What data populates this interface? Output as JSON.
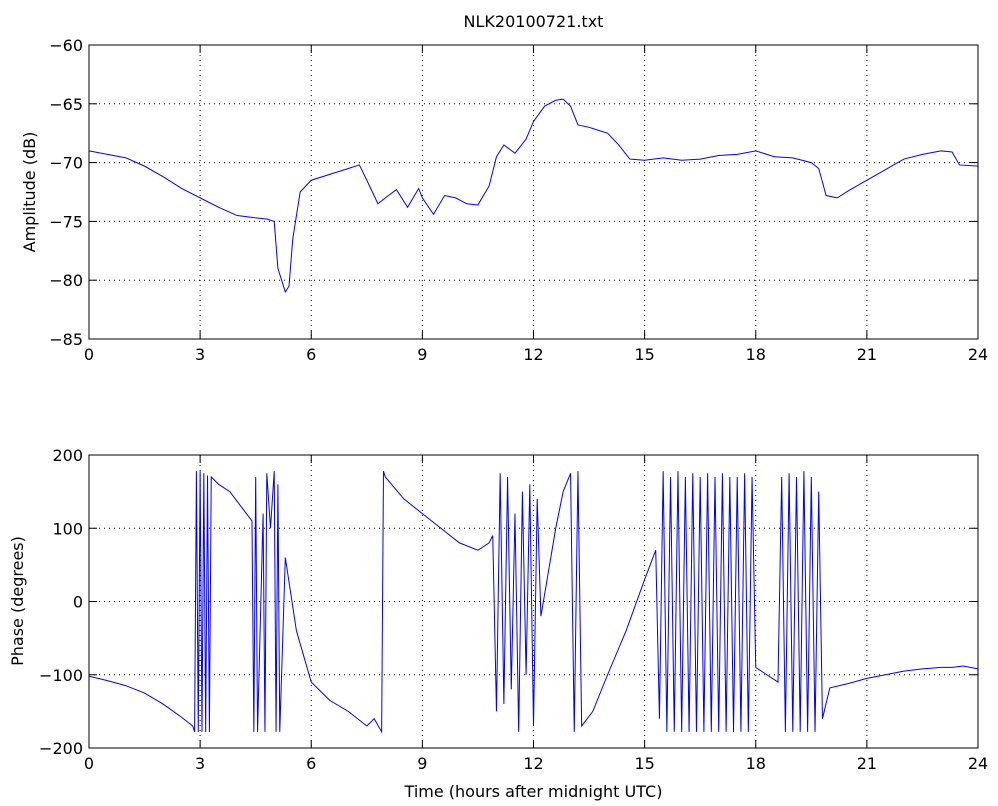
{
  "chart_data": [
    {
      "type": "line",
      "title": "NLK20100721.txt",
      "xlabel": "",
      "ylabel": "Amplitude (dB)",
      "xlim": [
        0,
        24
      ],
      "ylim": [
        -85,
        -60
      ],
      "xticks": [
        "0",
        "3",
        "6",
        "9",
        "12",
        "15",
        "18",
        "21",
        "24"
      ],
      "yticks": [
        "−85",
        "−80",
        "−75",
        "−70",
        "−65",
        "−60"
      ],
      "grid": true,
      "line_color": "#0000ff",
      "series": [
        {
          "x": [
            0,
            0.5,
            1,
            1.5,
            2,
            2.5,
            3,
            3.5,
            4,
            4.5,
            4.8,
            5.0,
            5.1,
            5.2,
            5.3,
            5.4,
            5.5,
            5.7,
            6.0,
            6.5,
            7.0,
            7.3,
            7.5,
            7.8,
            8.0,
            8.3,
            8.6,
            8.9,
            9.0,
            9.3,
            9.6,
            9.9,
            10.2,
            10.5,
            10.8,
            11.0,
            11.2,
            11.5,
            11.8,
            12.0,
            12.3,
            12.6,
            12.8,
            13.0,
            13.2,
            13.5,
            13.8,
            14.0,
            14.3,
            14.6,
            15.0,
            15.5,
            16.0,
            16.5,
            17.0,
            17.5,
            18.0,
            18.5,
            19.0,
            19.5,
            19.7,
            19.9,
            20.2,
            20.5,
            21.0,
            21.5,
            22.0,
            22.5,
            23.0,
            23.3,
            23.5,
            24.0
          ],
          "y": [
            -69.0,
            -69.3,
            -69.6,
            -70.3,
            -71.2,
            -72.2,
            -73.0,
            -73.8,
            -74.5,
            -74.7,
            -74.8,
            -75.0,
            -79.0,
            -80.0,
            -81.0,
            -80.5,
            -76.5,
            -72.5,
            -71.5,
            -71.0,
            -70.5,
            -70.2,
            -71.5,
            -73.5,
            -73.0,
            -72.3,
            -73.8,
            -72.2,
            -73.0,
            -74.4,
            -72.8,
            -73.0,
            -73.5,
            -73.6,
            -72.0,
            -69.5,
            -68.5,
            -69.2,
            -68.0,
            -66.5,
            -65.2,
            -64.7,
            -64.6,
            -65.2,
            -66.8,
            -67.0,
            -67.3,
            -67.5,
            -68.5,
            -69.7,
            -69.8,
            -69.6,
            -69.8,
            -69.7,
            -69.4,
            -69.3,
            -69.0,
            -69.5,
            -69.6,
            -70.0,
            -70.5,
            -72.8,
            -73.0,
            -72.4,
            -71.5,
            -70.6,
            -69.7,
            -69.3,
            -69.0,
            -69.1,
            -70.2,
            -70.3
          ]
        }
      ]
    },
    {
      "type": "line",
      "title": "",
      "xlabel": "Time (hours after midnight UTC)",
      "ylabel": "Phase (degrees)",
      "xlim": [
        0,
        24
      ],
      "ylim": [
        -200,
        200
      ],
      "xticks": [
        "0",
        "3",
        "6",
        "9",
        "12",
        "15",
        "18",
        "21",
        "24"
      ],
      "yticks": [
        "−200",
        "−100",
        "0",
        "100",
        "200"
      ],
      "grid": true,
      "line_color": "#0000ff",
      "series": [
        {
          "x": [
            0,
            0.5,
            1.0,
            1.5,
            2.0,
            2.5,
            2.8,
            2.85,
            2.9,
            2.95,
            3.0,
            3.05,
            3.1,
            3.15,
            3.2,
            3.25,
            3.3,
            3.4,
            3.5,
            3.8,
            4.1,
            4.4,
            4.45,
            4.5,
            4.55,
            4.7,
            4.75,
            4.8,
            4.9,
            5.0,
            5.05,
            5.1,
            5.15,
            5.3,
            5.6,
            6.0,
            6.5,
            7.0,
            7.5,
            7.7,
            7.9,
            7.95,
            8.0,
            8.5,
            9.0,
            9.5,
            10.0,
            10.5,
            10.8,
            10.9,
            11.0,
            11.1,
            11.2,
            11.3,
            11.4,
            11.5,
            11.6,
            11.7,
            11.8,
            11.9,
            12.0,
            12.1,
            12.2,
            12.4,
            12.6,
            12.8,
            13.0,
            13.1,
            13.2,
            13.3,
            13.6,
            14.0,
            14.5,
            15.0,
            15.3,
            15.4,
            15.5,
            15.6,
            15.7,
            15.8,
            15.9,
            16.0,
            16.1,
            16.2,
            16.3,
            16.4,
            16.5,
            16.6,
            16.7,
            16.8,
            16.9,
            17.0,
            17.1,
            17.2,
            17.3,
            17.4,
            17.5,
            17.6,
            17.7,
            17.8,
            17.9,
            18.0,
            18.3,
            18.6,
            18.7,
            18.8,
            18.9,
            19.0,
            19.1,
            19.2,
            19.3,
            19.4,
            19.5,
            19.6,
            19.7,
            19.8,
            20.0,
            20.5,
            21.0,
            21.5,
            22.0,
            22.5,
            23.0,
            23.3,
            23.6,
            24.0
          ],
          "y": [
            -102,
            -108,
            -115,
            -125,
            -140,
            -158,
            -170,
            -178,
            178,
            -178,
            178,
            -178,
            175,
            -178,
            172,
            -178,
            170,
            165,
            160,
            150,
            130,
            110,
            -178,
            170,
            -178,
            120,
            -178,
            175,
            100,
            178,
            -178,
            160,
            -178,
            60,
            -40,
            -110,
            -135,
            -150,
            -170,
            -160,
            -178,
            178,
            170,
            140,
            120,
            100,
            80,
            70,
            80,
            90,
            -150,
            175,
            -140,
            170,
            -120,
            120,
            -178,
            150,
            -100,
            160,
            -170,
            140,
            -20,
            40,
            100,
            150,
            175,
            -178,
            178,
            -170,
            -150,
            -100,
            -40,
            30,
            70,
            -160,
            178,
            -178,
            170,
            -178,
            178,
            -178,
            170,
            -178,
            175,
            -178,
            170,
            -178,
            175,
            -178,
            170,
            -178,
            175,
            -178,
            170,
            -178,
            170,
            -178,
            175,
            -178,
            170,
            -90,
            -100,
            -110,
            170,
            -178,
            175,
            -178,
            170,
            -178,
            178,
            -178,
            170,
            -178,
            150,
            -160,
            -118,
            -112,
            -105,
            -100,
            -95,
            -92,
            -90,
            -90,
            -88,
            -92
          ]
        }
      ]
    }
  ]
}
